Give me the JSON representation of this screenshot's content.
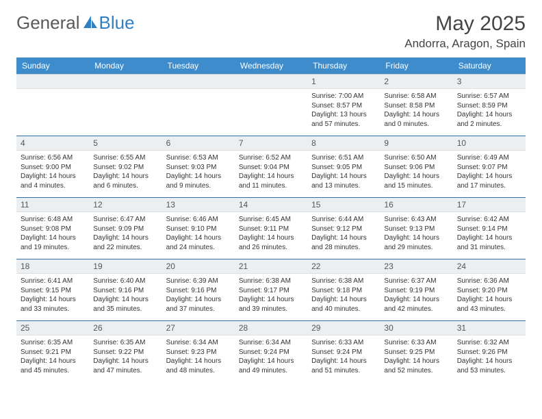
{
  "brand": {
    "part1": "General",
    "part2": "Blue"
  },
  "title": "May 2025",
  "location": "Andorra, Aragon, Spain",
  "colors": {
    "header_bg": "#3e8ccc",
    "header_text": "#ffffff",
    "row_border": "#2f6ea8",
    "daynum_bg": "#eceff1",
    "body_text": "#333333",
    "brand_gray": "#5a5a5a",
    "brand_blue": "#2f7fc1",
    "page_bg": "#ffffff"
  },
  "typography": {
    "title_fontsize": 30,
    "location_fontsize": 17,
    "dow_fontsize": 12,
    "daynum_fontsize": 12,
    "body_fontsize": 10
  },
  "days_of_week": [
    "Sunday",
    "Monday",
    "Tuesday",
    "Wednesday",
    "Thursday",
    "Friday",
    "Saturday"
  ],
  "weeks": [
    [
      null,
      null,
      null,
      null,
      {
        "n": "1",
        "sunrise": "7:00 AM",
        "sunset": "8:57 PM",
        "daylight": "13 hours and 57 minutes."
      },
      {
        "n": "2",
        "sunrise": "6:58 AM",
        "sunset": "8:58 PM",
        "daylight": "14 hours and 0 minutes."
      },
      {
        "n": "3",
        "sunrise": "6:57 AM",
        "sunset": "8:59 PM",
        "daylight": "14 hours and 2 minutes."
      }
    ],
    [
      {
        "n": "4",
        "sunrise": "6:56 AM",
        "sunset": "9:00 PM",
        "daylight": "14 hours and 4 minutes."
      },
      {
        "n": "5",
        "sunrise": "6:55 AM",
        "sunset": "9:02 PM",
        "daylight": "14 hours and 6 minutes."
      },
      {
        "n": "6",
        "sunrise": "6:53 AM",
        "sunset": "9:03 PM",
        "daylight": "14 hours and 9 minutes."
      },
      {
        "n": "7",
        "sunrise": "6:52 AM",
        "sunset": "9:04 PM",
        "daylight": "14 hours and 11 minutes."
      },
      {
        "n": "8",
        "sunrise": "6:51 AM",
        "sunset": "9:05 PM",
        "daylight": "14 hours and 13 minutes."
      },
      {
        "n": "9",
        "sunrise": "6:50 AM",
        "sunset": "9:06 PM",
        "daylight": "14 hours and 15 minutes."
      },
      {
        "n": "10",
        "sunrise": "6:49 AM",
        "sunset": "9:07 PM",
        "daylight": "14 hours and 17 minutes."
      }
    ],
    [
      {
        "n": "11",
        "sunrise": "6:48 AM",
        "sunset": "9:08 PM",
        "daylight": "14 hours and 19 minutes."
      },
      {
        "n": "12",
        "sunrise": "6:47 AM",
        "sunset": "9:09 PM",
        "daylight": "14 hours and 22 minutes."
      },
      {
        "n": "13",
        "sunrise": "6:46 AM",
        "sunset": "9:10 PM",
        "daylight": "14 hours and 24 minutes."
      },
      {
        "n": "14",
        "sunrise": "6:45 AM",
        "sunset": "9:11 PM",
        "daylight": "14 hours and 26 minutes."
      },
      {
        "n": "15",
        "sunrise": "6:44 AM",
        "sunset": "9:12 PM",
        "daylight": "14 hours and 28 minutes."
      },
      {
        "n": "16",
        "sunrise": "6:43 AM",
        "sunset": "9:13 PM",
        "daylight": "14 hours and 29 minutes."
      },
      {
        "n": "17",
        "sunrise": "6:42 AM",
        "sunset": "9:14 PM",
        "daylight": "14 hours and 31 minutes."
      }
    ],
    [
      {
        "n": "18",
        "sunrise": "6:41 AM",
        "sunset": "9:15 PM",
        "daylight": "14 hours and 33 minutes."
      },
      {
        "n": "19",
        "sunrise": "6:40 AM",
        "sunset": "9:16 PM",
        "daylight": "14 hours and 35 minutes."
      },
      {
        "n": "20",
        "sunrise": "6:39 AM",
        "sunset": "9:16 PM",
        "daylight": "14 hours and 37 minutes."
      },
      {
        "n": "21",
        "sunrise": "6:38 AM",
        "sunset": "9:17 PM",
        "daylight": "14 hours and 39 minutes."
      },
      {
        "n": "22",
        "sunrise": "6:38 AM",
        "sunset": "9:18 PM",
        "daylight": "14 hours and 40 minutes."
      },
      {
        "n": "23",
        "sunrise": "6:37 AM",
        "sunset": "9:19 PM",
        "daylight": "14 hours and 42 minutes."
      },
      {
        "n": "24",
        "sunrise": "6:36 AM",
        "sunset": "9:20 PM",
        "daylight": "14 hours and 43 minutes."
      }
    ],
    [
      {
        "n": "25",
        "sunrise": "6:35 AM",
        "sunset": "9:21 PM",
        "daylight": "14 hours and 45 minutes."
      },
      {
        "n": "26",
        "sunrise": "6:35 AM",
        "sunset": "9:22 PM",
        "daylight": "14 hours and 47 minutes."
      },
      {
        "n": "27",
        "sunrise": "6:34 AM",
        "sunset": "9:23 PM",
        "daylight": "14 hours and 48 minutes."
      },
      {
        "n": "28",
        "sunrise": "6:34 AM",
        "sunset": "9:24 PM",
        "daylight": "14 hours and 49 minutes."
      },
      {
        "n": "29",
        "sunrise": "6:33 AM",
        "sunset": "9:24 PM",
        "daylight": "14 hours and 51 minutes."
      },
      {
        "n": "30",
        "sunrise": "6:33 AM",
        "sunset": "9:25 PM",
        "daylight": "14 hours and 52 minutes."
      },
      {
        "n": "31",
        "sunrise": "6:32 AM",
        "sunset": "9:26 PM",
        "daylight": "14 hours and 53 minutes."
      }
    ]
  ],
  "labels": {
    "sunrise_prefix": "Sunrise: ",
    "sunset_prefix": "Sunset: ",
    "daylight_prefix": "Daylight: "
  }
}
